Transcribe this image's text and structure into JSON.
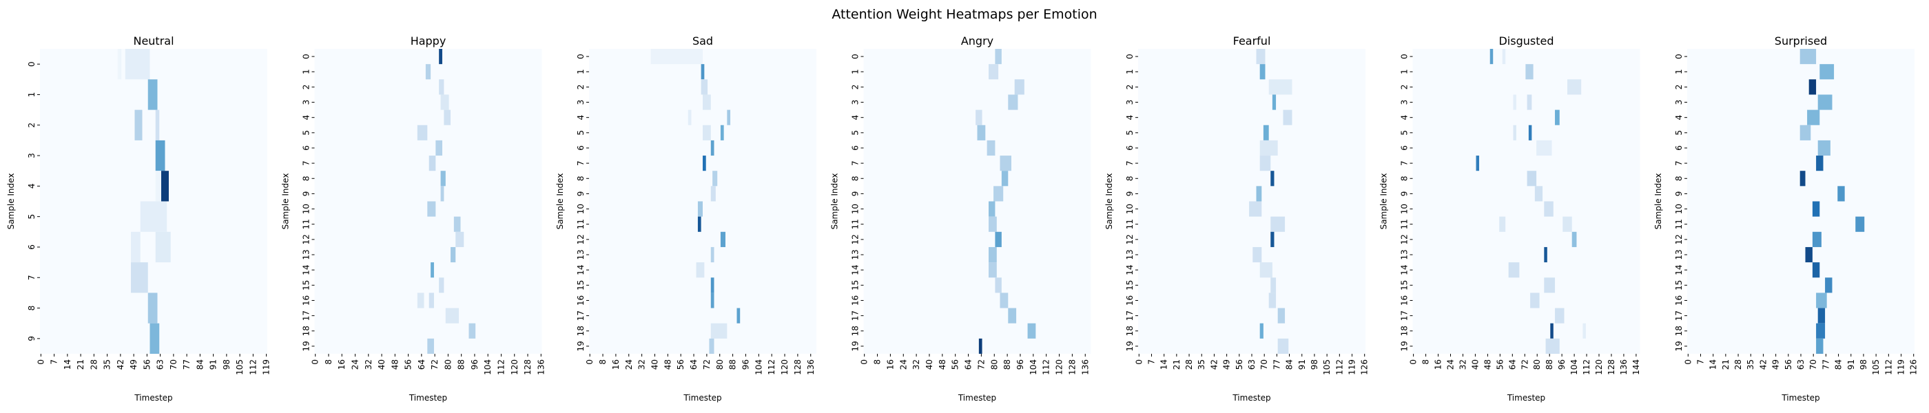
{
  "title": "Attention Weight Heatmaps per Emotion",
  "colors": {
    "cmap_low": "#f7fbff",
    "cmap_high": "#08306b",
    "axis": "#000000"
  },
  "chart_data": [
    {
      "type": "heatmap",
      "title": "Neutral",
      "xlabel": "Timestep",
      "ylabel": "Sample Index",
      "rows": 10,
      "cols": 120,
      "x_tick_step": 7,
      "y_tick_step": 1,
      "cells": [
        [
          0,
          41,
          42,
          0.04
        ],
        [
          0,
          42,
          43,
          0.05
        ],
        [
          0,
          45,
          58,
          0.1
        ],
        [
          1,
          57,
          62,
          0.45
        ],
        [
          2,
          50,
          54,
          0.3
        ],
        [
          2,
          61,
          63,
          0.2
        ],
        [
          3,
          61,
          66,
          0.55
        ],
        [
          4,
          64,
          68,
          0.95
        ],
        [
          4,
          61,
          64,
          0.05
        ],
        [
          5,
          53,
          67,
          0.1
        ],
        [
          6,
          48,
          53,
          0.1
        ],
        [
          6,
          61,
          69,
          0.12
        ],
        [
          7,
          48,
          57,
          0.2
        ],
        [
          8,
          57,
          62,
          0.35
        ],
        [
          9,
          58,
          63,
          0.45
        ]
      ]
    },
    {
      "type": "heatmap",
      "title": "Happy",
      "xlabel": "Timestep",
      "ylabel": "Sample Index",
      "rows": 20,
      "cols": 137,
      "x_tick_step": 8,
      "y_tick_step": 1,
      "cells": [
        [
          0,
          75,
          77,
          0.9
        ],
        [
          1,
          67,
          70,
          0.3
        ],
        [
          2,
          75,
          78,
          0.2
        ],
        [
          3,
          76,
          81,
          0.15
        ],
        [
          4,
          78,
          82,
          0.2
        ],
        [
          5,
          62,
          68,
          0.22
        ],
        [
          6,
          73,
          77,
          0.3
        ],
        [
          7,
          69,
          73,
          0.25
        ],
        [
          8,
          76,
          79,
          0.4
        ],
        [
          9,
          76,
          78,
          0.3
        ],
        [
          10,
          68,
          73,
          0.3
        ],
        [
          11,
          84,
          88,
          0.3
        ],
        [
          12,
          85,
          90,
          0.2
        ],
        [
          13,
          82,
          85,
          0.35
        ],
        [
          14,
          70,
          72,
          0.5
        ],
        [
          15,
          75,
          78,
          0.2
        ],
        [
          16,
          62,
          66,
          0.15
        ],
        [
          16,
          69,
          72,
          0.2
        ],
        [
          17,
          79,
          87,
          0.15
        ],
        [
          18,
          93,
          97,
          0.3
        ],
        [
          19,
          68,
          72,
          0.3
        ]
      ]
    },
    {
      "type": "heatmap",
      "title": "Sad",
      "xlabel": "Timestep",
      "ylabel": "Sample Index",
      "rows": 20,
      "cols": 140,
      "x_tick_step": 8,
      "y_tick_step": 1,
      "cells": [
        [
          0,
          38,
          70,
          0.06
        ],
        [
          1,
          69,
          71,
          0.6
        ],
        [
          2,
          69,
          73,
          0.2
        ],
        [
          3,
          70,
          75,
          0.15
        ],
        [
          4,
          61,
          63,
          0.1
        ],
        [
          4,
          85,
          87,
          0.35
        ],
        [
          5,
          70,
          75,
          0.15
        ],
        [
          5,
          81,
          83,
          0.5
        ],
        [
          6,
          75,
          77,
          0.55
        ],
        [
          7,
          70,
          72,
          0.75
        ],
        [
          8,
          76,
          79,
          0.3
        ],
        [
          9,
          75,
          78,
          0.2
        ],
        [
          10,
          67,
          70,
          0.35
        ],
        [
          11,
          67,
          69,
          0.85
        ],
        [
          12,
          81,
          84,
          0.55
        ],
        [
          13,
          75,
          77,
          0.3
        ],
        [
          14,
          66,
          71,
          0.15
        ],
        [
          15,
          75,
          77,
          0.6
        ],
        [
          16,
          75,
          77,
          0.55
        ],
        [
          17,
          91,
          93,
          0.55
        ],
        [
          18,
          75,
          85,
          0.15
        ],
        [
          19,
          74,
          77,
          0.3
        ]
      ]
    },
    {
      "type": "heatmap",
      "title": "Angry",
      "xlabel": "Timestep",
      "ylabel": "Sample Index",
      "rows": 20,
      "cols": 140,
      "x_tick_step": 8,
      "y_tick_step": 1,
      "cells": [
        [
          0,
          81,
          85,
          0.3
        ],
        [
          1,
          77,
          83,
          0.2
        ],
        [
          2,
          93,
          99,
          0.25
        ],
        [
          3,
          89,
          95,
          0.3
        ],
        [
          4,
          69,
          73,
          0.2
        ],
        [
          5,
          70,
          75,
          0.35
        ],
        [
          6,
          76,
          81,
          0.3
        ],
        [
          7,
          84,
          91,
          0.3
        ],
        [
          8,
          85,
          89,
          0.4
        ],
        [
          9,
          80,
          86,
          0.3
        ],
        [
          10,
          77,
          81,
          0.4
        ],
        [
          11,
          77,
          82,
          0.3
        ],
        [
          12,
          81,
          85,
          0.55
        ],
        [
          13,
          77,
          82,
          0.35
        ],
        [
          14,
          77,
          82,
          0.3
        ],
        [
          15,
          81,
          85,
          0.25
        ],
        [
          16,
          84,
          89,
          0.3
        ],
        [
          17,
          89,
          94,
          0.35
        ],
        [
          18,
          101,
          106,
          0.4
        ],
        [
          19,
          71,
          73,
          0.95
        ]
      ]
    },
    {
      "type": "heatmap",
      "title": "Fearful",
      "xlabel": "Timestep",
      "ylabel": "Sample Index",
      "rows": 20,
      "cols": 127,
      "x_tick_step": 7,
      "y_tick_step": 1,
      "cells": [
        [
          0,
          66,
          71,
          0.2
        ],
        [
          1,
          68,
          71,
          0.5
        ],
        [
          2,
          73,
          86,
          0.12
        ],
        [
          3,
          75,
          77,
          0.5
        ],
        [
          4,
          81,
          86,
          0.2
        ],
        [
          5,
          70,
          73,
          0.5
        ],
        [
          6,
          68,
          78,
          0.15
        ],
        [
          7,
          68,
          74,
          0.2
        ],
        [
          8,
          74,
          76,
          0.85
        ],
        [
          9,
          66,
          69,
          0.4
        ],
        [
          10,
          62,
          69,
          0.2
        ],
        [
          11,
          74,
          82,
          0.2
        ],
        [
          12,
          74,
          76,
          0.85
        ],
        [
          13,
          64,
          69,
          0.2
        ],
        [
          14,
          68,
          75,
          0.15
        ],
        [
          15,
          74,
          77,
          0.2
        ],
        [
          16,
          73,
          77,
          0.2
        ],
        [
          17,
          78,
          82,
          0.3
        ],
        [
          18,
          68,
          70,
          0.5
        ],
        [
          19,
          78,
          84,
          0.2
        ]
      ]
    },
    {
      "type": "heatmap",
      "title": "Disgusted",
      "xlabel": "Timestep",
      "ylabel": "Sample Index",
      "rows": 20,
      "cols": 147,
      "x_tick_step": 8,
      "y_tick_step": 1,
      "cells": [
        [
          0,
          50,
          52,
          0.55
        ],
        [
          0,
          58,
          60,
          0.1
        ],
        [
          1,
          73,
          78,
          0.3
        ],
        [
          2,
          100,
          109,
          0.15
        ],
        [
          3,
          65,
          67,
          0.1
        ],
        [
          3,
          74,
          77,
          0.2
        ],
        [
          4,
          92,
          95,
          0.5
        ],
        [
          5,
          65,
          67,
          0.15
        ],
        [
          5,
          75,
          77,
          0.7
        ],
        [
          6,
          80,
          90,
          0.1
        ],
        [
          7,
          41,
          43,
          0.7
        ],
        [
          8,
          74,
          80,
          0.25
        ],
        [
          9,
          79,
          84,
          0.2
        ],
        [
          10,
          85,
          91,
          0.2
        ],
        [
          11,
          56,
          60,
          0.15
        ],
        [
          11,
          97,
          103,
          0.15
        ],
        [
          12,
          103,
          106,
          0.4
        ],
        [
          13,
          85,
          87,
          0.85
        ],
        [
          14,
          62,
          69,
          0.2
        ],
        [
          15,
          85,
          92,
          0.2
        ],
        [
          16,
          76,
          82,
          0.2
        ],
        [
          17,
          92,
          98,
          0.2
        ],
        [
          18,
          89,
          91,
          0.9
        ],
        [
          18,
          110,
          112,
          0.1
        ],
        [
          19,
          86,
          95,
          0.2
        ]
      ]
    },
    {
      "type": "heatmap",
      "title": "Surprised",
      "xlabel": "Timestep",
      "ylabel": "Sample Index",
      "rows": 20,
      "cols": 127,
      "x_tick_step": 7,
      "y_tick_step": 1,
      "cells": [
        [
          0,
          63,
          72,
          0.35
        ],
        [
          1,
          74,
          82,
          0.45
        ],
        [
          2,
          68,
          72,
          0.95
        ],
        [
          3,
          73,
          81,
          0.45
        ],
        [
          4,
          67,
          74,
          0.45
        ],
        [
          5,
          63,
          69,
          0.35
        ],
        [
          6,
          73,
          80,
          0.4
        ],
        [
          7,
          72,
          76,
          0.8
        ],
        [
          8,
          63,
          66,
          0.9
        ],
        [
          9,
          84,
          88,
          0.6
        ],
        [
          10,
          70,
          74,
          0.75
        ],
        [
          11,
          94,
          99,
          0.6
        ],
        [
          12,
          70,
          75,
          0.6
        ],
        [
          13,
          66,
          70,
          0.9
        ],
        [
          14,
          70,
          74,
          0.8
        ],
        [
          15,
          77,
          81,
          0.65
        ],
        [
          16,
          72,
          78,
          0.45
        ],
        [
          17,
          73,
          77,
          0.8
        ],
        [
          18,
          72,
          77,
          0.7
        ],
        [
          19,
          72,
          76,
          0.55
        ]
      ]
    }
  ]
}
